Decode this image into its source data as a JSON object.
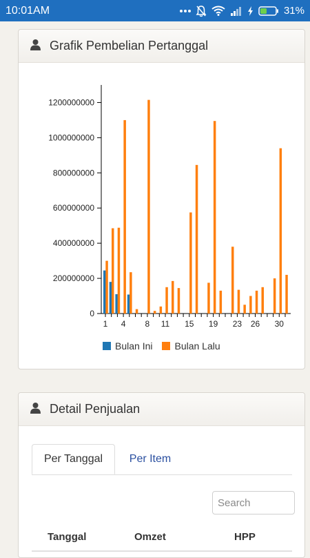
{
  "status_bar": {
    "time": "10:01AM",
    "battery": "31%",
    "icons": [
      "dots-icon",
      "mute-bell-icon",
      "wifi-icon",
      "signal-icon",
      "charging-icon",
      "battery-icon"
    ]
  },
  "chart_card": {
    "title": "Grafik Pembelian Pertanggal",
    "icon": "user-icon"
  },
  "chart_data": {
    "type": "bar",
    "title": "",
    "xlabel": "",
    "ylabel": "",
    "ylim": [
      0,
      1300000000
    ],
    "y_ticks": [
      0,
      200000000,
      400000000,
      600000000,
      800000000,
      1000000000,
      1200000000
    ],
    "y_tick_labels": [
      "0",
      "200000000",
      "400000000",
      "600000000",
      "800000000",
      "1000000000",
      "1200000000"
    ],
    "categories": [
      1,
      2,
      3,
      4,
      5,
      6,
      7,
      8,
      9,
      10,
      11,
      12,
      13,
      14,
      15,
      16,
      17,
      18,
      19,
      20,
      21,
      22,
      23,
      24,
      25,
      26,
      27,
      28,
      29,
      30,
      31
    ],
    "x_tick_labels": [
      "1",
      "4",
      "8",
      "11",
      "15",
      "19",
      "23",
      "26",
      "30"
    ],
    "x_tick_label_days": [
      1,
      4,
      8,
      11,
      15,
      19,
      23,
      26,
      30
    ],
    "grid": false,
    "legend_position": "bottom",
    "series": [
      {
        "name": "Bulan Ini",
        "color": "#1f77b4",
        "values": [
          245000000,
          180000000,
          110000000,
          0,
          108000000,
          0,
          0,
          0,
          0,
          0,
          0,
          0,
          0,
          0,
          0,
          0,
          0,
          0,
          0,
          0,
          0,
          0,
          0,
          0,
          0,
          0,
          0,
          0,
          0,
          0,
          0
        ]
      },
      {
        "name": "Bulan Lalu",
        "color": "#ff7f0e",
        "values": [
          300000000,
          485000000,
          488000000,
          1100000000,
          235000000,
          25000000,
          0,
          1215000000,
          15000000,
          40000000,
          150000000,
          185000000,
          145000000,
          0,
          575000000,
          845000000,
          0,
          175000000,
          1095000000,
          130000000,
          0,
          380000000,
          135000000,
          50000000,
          100000000,
          130000000,
          150000000,
          0,
          200000000,
          940000000,
          220000000
        ]
      }
    ]
  },
  "detail_card": {
    "title": "Detail Penjualan",
    "icon": "user-icon",
    "tabs": [
      {
        "label": "Per Tanggal",
        "active": true
      },
      {
        "label": "Per Item",
        "active": false
      }
    ],
    "search_placeholder": "Search",
    "columns": [
      "Tanggal",
      "Omzet",
      "HPP"
    ]
  }
}
